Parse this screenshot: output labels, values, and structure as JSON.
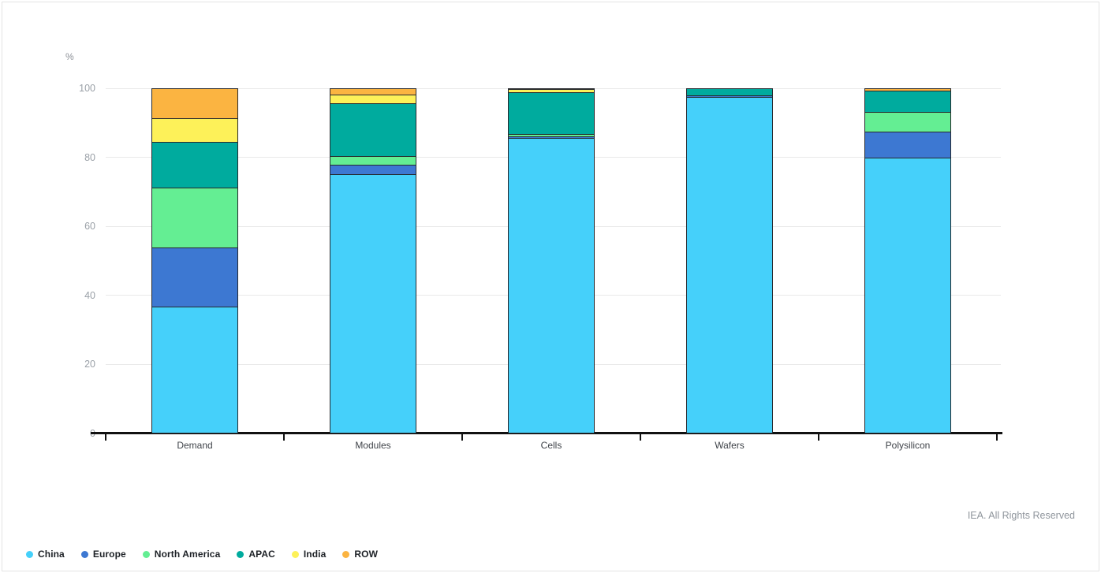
{
  "chart_data": {
    "type": "bar",
    "stacked": true,
    "orientation": "vertical",
    "title": "",
    "ylabel": "%",
    "ylim": [
      0,
      100
    ],
    "yticks": [
      0,
      20,
      40,
      60,
      80,
      100
    ],
    "grid": "horizontal",
    "legend_position": "bottom-left",
    "categories": [
      "Demand",
      "Modules",
      "Cells",
      "Wafers",
      "Polysilicon"
    ],
    "series": [
      {
        "name": "China",
        "color": "#45D0FA",
        "values": [
          36.4,
          74.9,
          85.4,
          97.2,
          79.6
        ]
      },
      {
        "name": "Europe",
        "color": "#3D78D2",
        "values": [
          17.2,
          2.7,
          0.5,
          0.6,
          7.7
        ]
      },
      {
        "name": "North America",
        "color": "#64EE93",
        "values": [
          17.4,
          2.6,
          0.6,
          0.0,
          5.6
        ]
      },
      {
        "name": "APAC",
        "color": "#00AB9E",
        "values": [
          13.3,
          15.3,
          12.1,
          2.2,
          6.3
        ]
      },
      {
        "name": "India",
        "color": "#FDF159",
        "values": [
          6.9,
          2.5,
          1.0,
          0.0,
          0.0
        ]
      },
      {
        "name": "ROW",
        "color": "#FBB441",
        "values": [
          8.8,
          2.0,
          0.4,
          0.0,
          0.8
        ]
      }
    ]
  },
  "colors": {
    "segment_border": "#26292e",
    "gridline": "#e9e9e9",
    "axis": "#111111",
    "tick_label": "#9aa0a7",
    "category_label": "#3f4349",
    "credit_text": "#8f959c"
  },
  "footer": {
    "credit": "IEA. All Rights Reserved"
  }
}
